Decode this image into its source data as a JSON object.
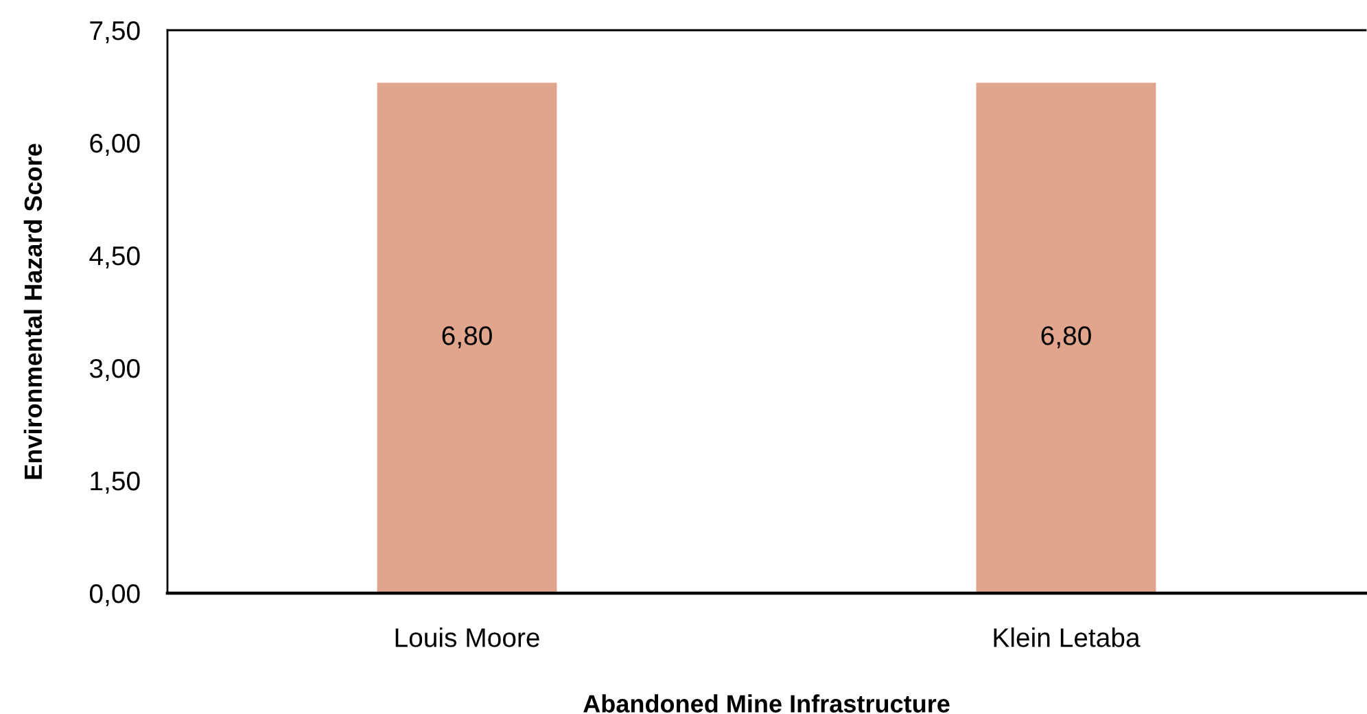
{
  "chart_data": {
    "type": "bar",
    "xlabel": "Abandoned Mine Infrastructure",
    "ylabel": "Environmental Hazard Score",
    "categories": [
      "Louis Moore",
      "Klein Letaba"
    ],
    "values": [
      6.8,
      6.8
    ],
    "value_labels": [
      "6,80",
      "6,80"
    ],
    "color": "#e0a58c",
    "ylim": [
      0,
      7.5
    ],
    "yticks": [
      {
        "value": 0,
        "label": "0,00"
      },
      {
        "value": 1.5,
        "label": "1,50"
      },
      {
        "value": 3,
        "label": "3,00"
      },
      {
        "value": 4.5,
        "label": "4,50"
      },
      {
        "value": 6,
        "label": "6,00"
      },
      {
        "value": 7.5,
        "label": "7,50"
      }
    ],
    "grid": false,
    "legend": false
  }
}
